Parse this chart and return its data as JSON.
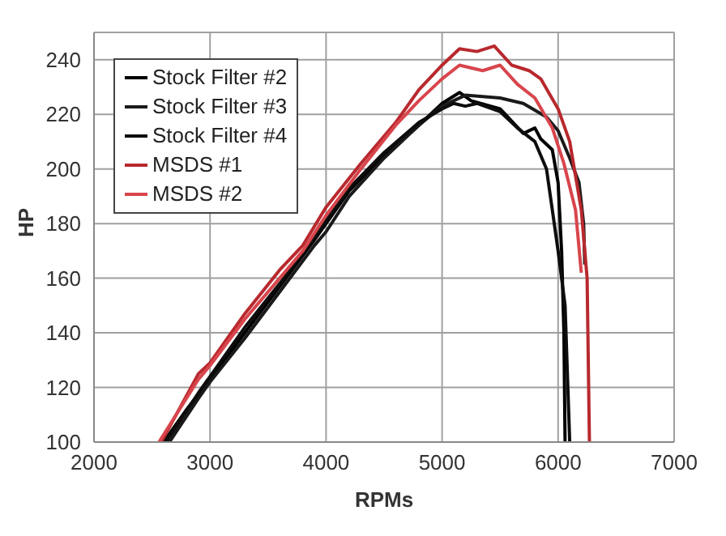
{
  "chart_data": {
    "type": "line",
    "xlabel": "RPMs",
    "ylabel": "HP",
    "xlim": [
      2000,
      7000
    ],
    "xticks": [
      2000,
      3000,
      4000,
      5000,
      6000,
      7000
    ],
    "ylim": [
      100,
      250
    ],
    "yticks": [
      100,
      120,
      140,
      160,
      180,
      200,
      220,
      240
    ],
    "grid": true,
    "legend": "top left",
    "marker": "none",
    "line_style": "solid",
    "series": [
      {
        "name": "Stock Filter #2",
        "color": "#000000",
        "x": [
          2600,
          2800,
          3000,
          3300,
          3600,
          3900,
          4000,
          4200,
          4500,
          4800,
          5000,
          5150,
          5250,
          5500,
          5700,
          5800,
          5850,
          5950,
          6000,
          6030,
          6050,
          6060
        ],
        "values": [
          100,
          112,
          123,
          140,
          157,
          174,
          180,
          192,
          205,
          216,
          224,
          228,
          225,
          222,
          213,
          215,
          211,
          207,
          195,
          170,
          140,
          100
        ]
      },
      {
        "name": "Stock Filter #3",
        "color": "#1a1a1a",
        "x": [
          2650,
          2900,
          3000,
          3300,
          3600,
          3900,
          4000,
          4200,
          4500,
          4800,
          5000,
          5200,
          5500,
          5700,
          5900,
          6000,
          6100,
          6180,
          6220,
          6230
        ],
        "values": [
          100,
          116,
          122,
          138,
          155,
          172,
          177,
          190,
          204,
          216,
          223,
          227,
          226,
          224,
          219,
          214,
          204,
          195,
          180,
          165
        ]
      },
      {
        "name": "Stock Filter #4",
        "color": "#0d0d0d",
        "x": [
          2620,
          2900,
          3000,
          3300,
          3600,
          3900,
          4000,
          4200,
          4500,
          4800,
          5000,
          5100,
          5200,
          5300,
          5500,
          5650,
          5800,
          5900,
          5950,
          6000,
          6060,
          6100
        ],
        "values": [
          100,
          118,
          124,
          142,
          158,
          175,
          181,
          193,
          206,
          217,
          222,
          224,
          223,
          224,
          221,
          215,
          210,
          200,
          185,
          170,
          150,
          100
        ]
      },
      {
        "name": "MSDS #1",
        "color": "#b8292e",
        "x": [
          2580,
          2900,
          3000,
          3300,
          3600,
          3800,
          4000,
          4300,
          4600,
          4800,
          5000,
          5150,
          5300,
          5450,
          5600,
          5750,
          5850,
          6000,
          6100,
          6200,
          6250,
          6270
        ],
        "values": [
          100,
          125,
          129,
          147,
          163,
          172,
          186,
          202,
          217,
          229,
          238,
          244,
          243,
          245,
          238,
          236,
          233,
          222,
          210,
          185,
          160,
          100
        ]
      },
      {
        "name": "MSDS #2",
        "color": "#d8454c",
        "x": [
          2560,
          2900,
          3000,
          3300,
          3600,
          3800,
          4000,
          4300,
          4600,
          4800,
          5000,
          5150,
          5350,
          5500,
          5650,
          5800,
          5950,
          6050,
          6150,
          6200
        ],
        "values": [
          100,
          123,
          128,
          145,
          160,
          170,
          183,
          200,
          216,
          225,
          233,
          238,
          236,
          238,
          231,
          226,
          215,
          202,
          185,
          162
        ]
      }
    ]
  }
}
